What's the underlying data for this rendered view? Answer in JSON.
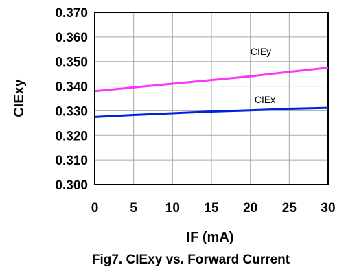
{
  "chart_data": {
    "type": "line",
    "title": "Fig7. CIExy vs. Forward Current",
    "xlabel": "IF (mA)",
    "ylabel": "CIExy",
    "xlim": [
      0,
      30
    ],
    "ylim": [
      0.3,
      0.37
    ],
    "x_ticks": [
      "0",
      "5",
      "10",
      "15",
      "20",
      "25",
      "30"
    ],
    "y_ticks": [
      "0.300",
      "0.310",
      "0.320",
      "0.330",
      "0.340",
      "0.350",
      "0.360",
      "0.370"
    ],
    "grid": true,
    "series": [
      {
        "name": "CIEy",
        "color": "#ff33ff",
        "x": [
          0,
          5,
          10,
          15,
          20,
          25,
          30
        ],
        "y": [
          0.338,
          0.3395,
          0.341,
          0.3425,
          0.344,
          0.3458,
          0.3475
        ]
      },
      {
        "name": "CIEx",
        "color": "#0022dd",
        "x": [
          0,
          5,
          10,
          15,
          20,
          25,
          30
        ],
        "y": [
          0.3275,
          0.3283,
          0.329,
          0.3297,
          0.3302,
          0.3308,
          0.3312
        ]
      }
    ]
  }
}
